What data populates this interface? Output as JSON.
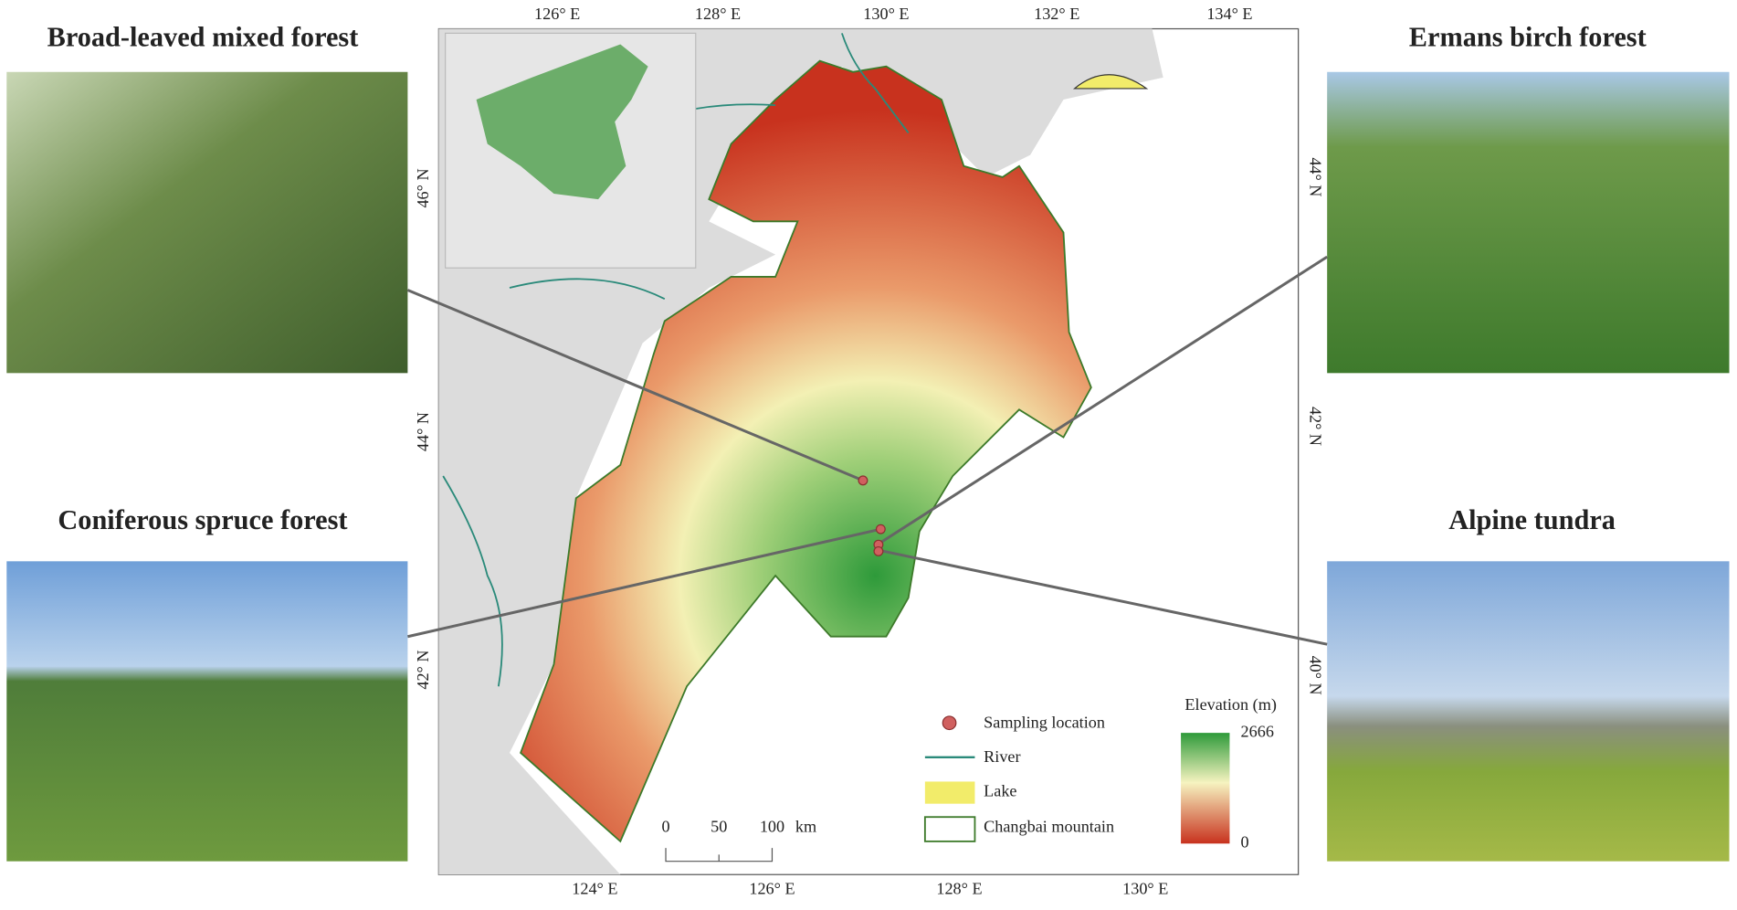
{
  "panels": [
    {
      "title": "Broad-leaved mixed forest"
    },
    {
      "title": "Coniferous spruce forest"
    },
    {
      "title": "Ermans birch forest"
    },
    {
      "title": "Alpine tundra"
    }
  ],
  "map": {
    "top_axis": [
      "126° E",
      "128° E",
      "130° E",
      "132° E",
      "134° E"
    ],
    "bottom_axis": [
      "124° E",
      "126° E",
      "128° E",
      "130° E"
    ],
    "left_axis": [
      "46° N",
      "44° N",
      "42° N"
    ],
    "right_axis": [
      "44° N",
      "42° N",
      "40° N"
    ]
  },
  "legend": {
    "items": [
      "Sampling location",
      "River",
      "Lake",
      "Changbai mountain"
    ],
    "elevation": {
      "title": "Elevation (m)",
      "max": 2666,
      "min": 0
    }
  },
  "scale_bar": {
    "labels": [
      "0",
      "50",
      "100"
    ],
    "unit": "km"
  }
}
